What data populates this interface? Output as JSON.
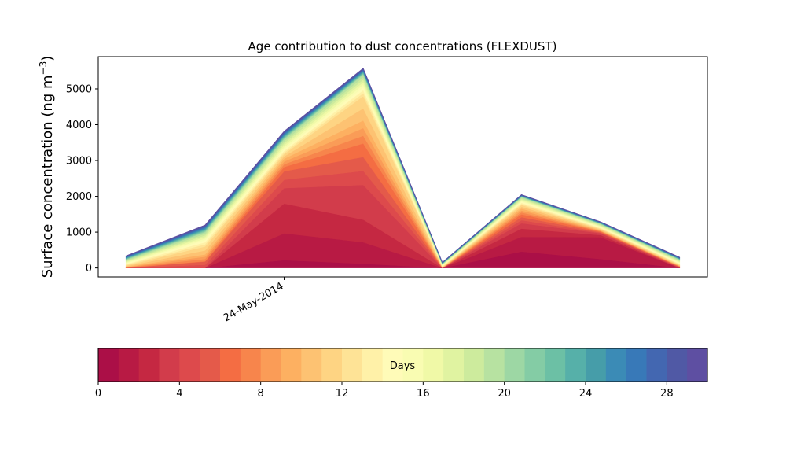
{
  "chart_data": [
    {
      "type": "area",
      "stacked": true,
      "title": "Age contribution to dust concentrations (FLEXDUST)",
      "ylabel_main": "Surface concentration (ng m",
      "ylabel_sup": "−3",
      "ylabel_close": ")",
      "x_index": [
        0,
        1,
        2,
        3,
        4,
        5,
        6,
        7
      ],
      "xtick_labels": [
        {
          "at": 2,
          "label": "24-May-2014"
        }
      ],
      "xlim": [
        -0.35,
        7.35
      ],
      "ylim": [
        -250,
        5900
      ],
      "yticks": [
        0,
        1000,
        2000,
        3000,
        4000,
        5000
      ],
      "series_count": 30,
      "key_totals": {
        "day1": [
          0,
          0,
          220,
          120,
          0,
          460,
          250,
          0
        ],
        "day2": [
          0,
          0,
          970,
          720,
          0,
          870,
          860,
          0
        ],
        "day3": [
          0,
          0,
          1800,
          1350,
          0,
          1100,
          920,
          0
        ],
        "day4": [
          0,
          0,
          2230,
          2320,
          0,
          1250,
          970,
          10
        ],
        "day6": [
          0,
          180,
          2700,
          3100,
          0,
          1420,
          1000,
          30
        ],
        "day7": [
          10,
          190,
          2820,
          3480,
          0,
          1500,
          1020,
          40
        ],
        "day10": [
          30,
          380,
          3050,
          4120,
          10,
          1660,
          1050,
          60
        ],
        "day12": [
          70,
          600,
          3180,
          4800,
          30,
          1760,
          1090,
          90
        ],
        "day15": [
          130,
          780,
          3320,
          5050,
          70,
          1850,
          1140,
          140
        ],
        "day20": [
          230,
          1000,
          3600,
          5400,
          115,
          1980,
          1230,
          230
        ],
        "day30": [
          340,
          1200,
          3820,
          5580,
          160,
          2050,
          1290,
          300
        ]
      },
      "colors": [
        "#ab0f47",
        "#b81a44",
        "#c52842",
        "#d23c4b",
        "#dd4a4c",
        "#e45a4a",
        "#f46d43",
        "#f7854c",
        "#fa9c57",
        "#fdb061",
        "#fdc272",
        "#fed483",
        "#fee396",
        "#fff1a8",
        "#fffbb8",
        "#f9fcb2",
        "#f0f9a7",
        "#e0f3a1",
        "#cdeb9d",
        "#b7e2a1",
        "#9dd7a4",
        "#84cca5",
        "#6cc0a5",
        "#56b0a9",
        "#469da9",
        "#3b8bb6",
        "#3879b8",
        "#4367b1",
        "#5059a5",
        "#5e4fa2"
      ]
    },
    {
      "type": "colorbar",
      "label": "Days",
      "range": [
        0,
        30
      ],
      "ticks": [
        0,
        4,
        8,
        12,
        16,
        20,
        24,
        28
      ]
    }
  ]
}
